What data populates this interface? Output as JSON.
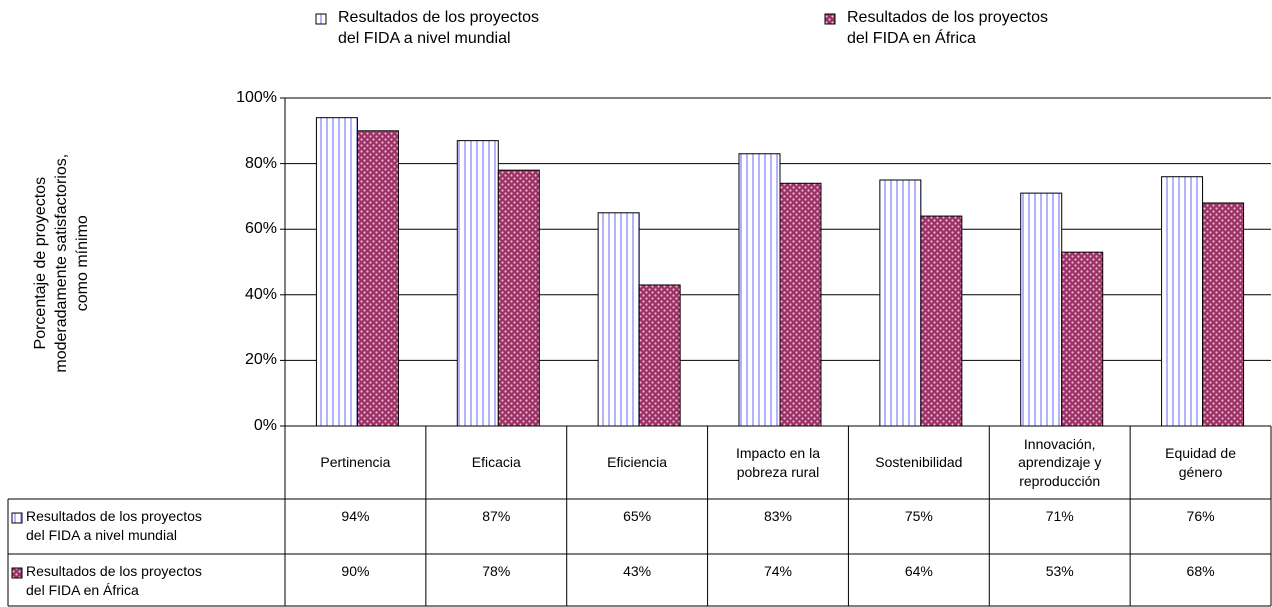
{
  "chart_data": {
    "type": "bar",
    "y_label": "Porcentaje de proyectos\nmoderadamente satisfactorios,\ncomo mínimo",
    "categories": [
      "Pertinencia",
      "Eficacia",
      "Eficiencia",
      "Impacto en la\npobreza rural",
      "Sostenibilidad",
      "Innovación,\naprendizaje y\nreproducción",
      "Equidad de\ngénero"
    ],
    "series": [
      {
        "name": "Resultados de los proyectos\ndel FIDA a nivel mundial",
        "color": "#9999ff",
        "values": [
          94,
          87,
          65,
          83,
          75,
          71,
          76
        ],
        "value_labels": [
          "94%",
          "87%",
          "65%",
          "83%",
          "75%",
          "71%",
          "76%"
        ]
      },
      {
        "name": "Resultados de los proyectos\ndel FIDA en África",
        "color": "#993366",
        "values": [
          90,
          78,
          43,
          74,
          64,
          53,
          68
        ],
        "value_labels": [
          "90%",
          "78%",
          "43%",
          "74%",
          "64%",
          "53%",
          "68%"
        ]
      }
    ],
    "ylim": [
      0,
      100
    ],
    "yticks": [
      {
        "value": 0,
        "label": "0%"
      },
      {
        "value": 20,
        "label": "20%"
      },
      {
        "value": 40,
        "label": "40%"
      },
      {
        "value": 60,
        "label": "60%"
      },
      {
        "value": 80,
        "label": "80%"
      },
      {
        "value": 100,
        "label": "100%"
      }
    ],
    "grid": true
  }
}
